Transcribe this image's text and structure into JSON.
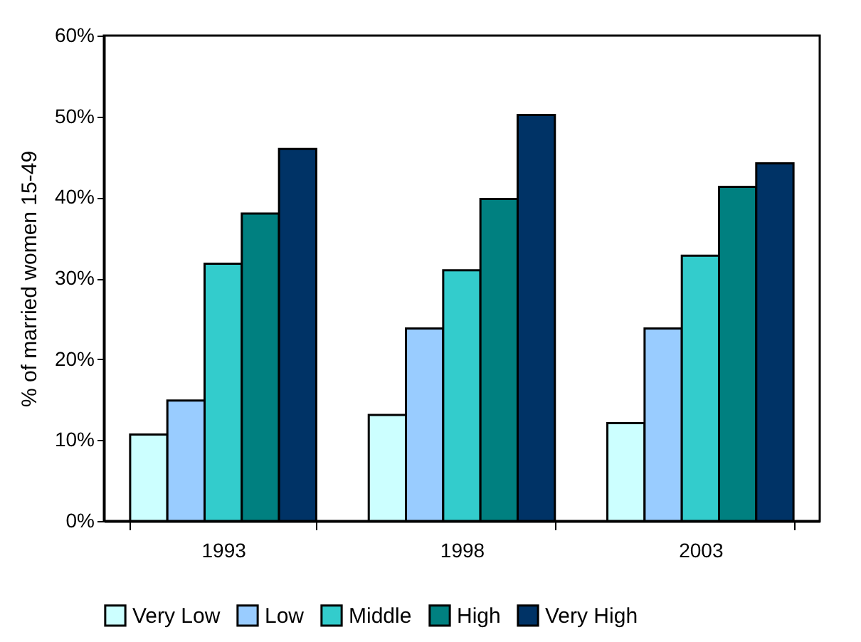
{
  "chart_data": {
    "type": "bar",
    "ylabel": "% of married women 15-49",
    "categories": [
      "1993",
      "1998",
      "2003"
    ],
    "series": [
      {
        "name": "Very Low",
        "color": "#ccffff",
        "values": [
          10.7,
          13.1,
          12.1
        ]
      },
      {
        "name": "Low",
        "color": "#99ccff",
        "values": [
          14.9,
          23.8,
          23.8
        ]
      },
      {
        "name": "Middle",
        "color": "#33cccc",
        "values": [
          31.8,
          31,
          32.8
        ]
      },
      {
        "name": "High",
        "color": "#008080",
        "values": [
          38,
          39.8,
          41.3
        ]
      },
      {
        "name": "Very High",
        "color": "#003366",
        "values": [
          46,
          50.2,
          44.2
        ]
      }
    ],
    "ylim": [
      0,
      60
    ],
    "yticks": [
      {
        "value": 0,
        "label": "0%"
      },
      {
        "value": 10,
        "label": "10%"
      },
      {
        "value": 20,
        "label": "20%"
      },
      {
        "value": 30,
        "label": "30%"
      },
      {
        "value": 40,
        "label": "40%"
      },
      {
        "value": 50,
        "label": "50%"
      },
      {
        "value": 60,
        "label": "60%"
      }
    ],
    "grid": false,
    "legend": "bottom"
  }
}
